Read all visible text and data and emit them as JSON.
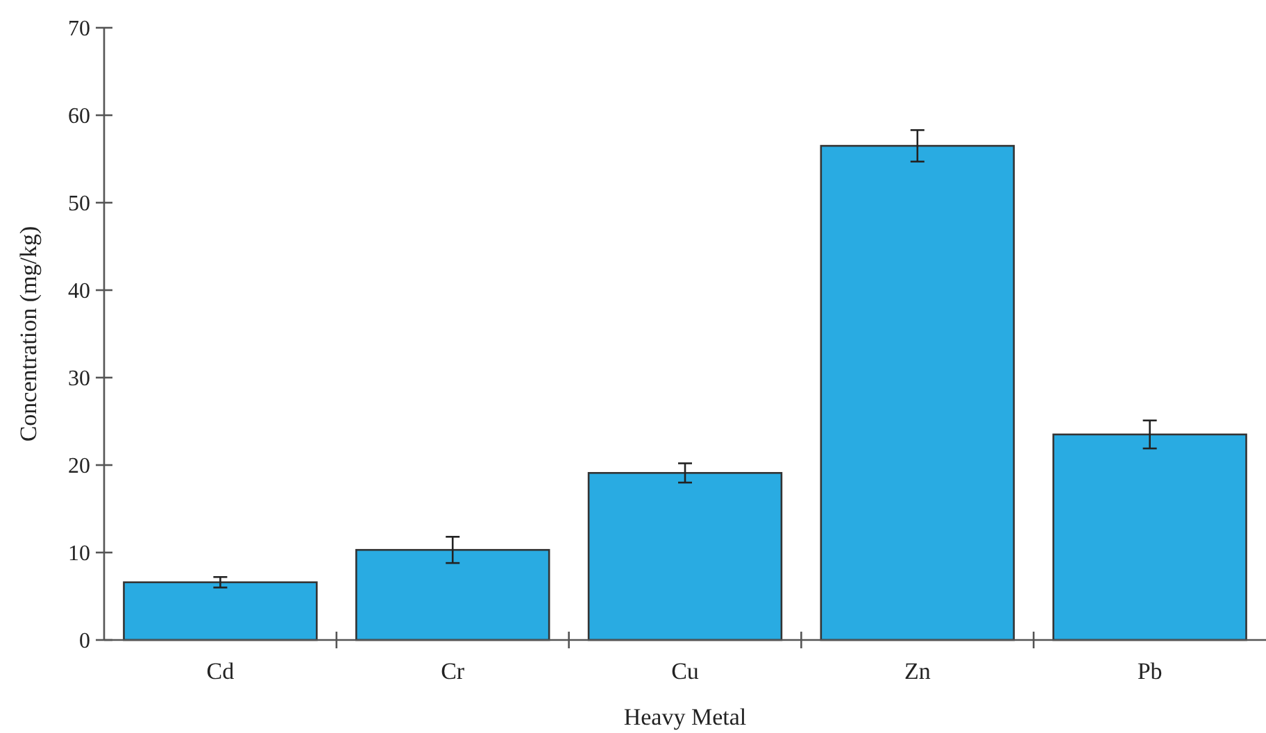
{
  "chart_data": {
    "type": "bar",
    "xlabel": "Heavy Metal",
    "ylabel": "Concentration (mg/kg)",
    "categories": [
      "Cd",
      "Cr",
      "Cu",
      "Zn",
      "Pb"
    ],
    "values": [
      6.6,
      10.3,
      19.1,
      56.5,
      23.5
    ],
    "errors": [
      0.6,
      1.5,
      1.1,
      1.8,
      1.6
    ],
    "color": "#29abe2",
    "ylim": [
      0,
      70
    ],
    "yticks": [
      0,
      10,
      20,
      30,
      40,
      50,
      60,
      70
    ]
  }
}
